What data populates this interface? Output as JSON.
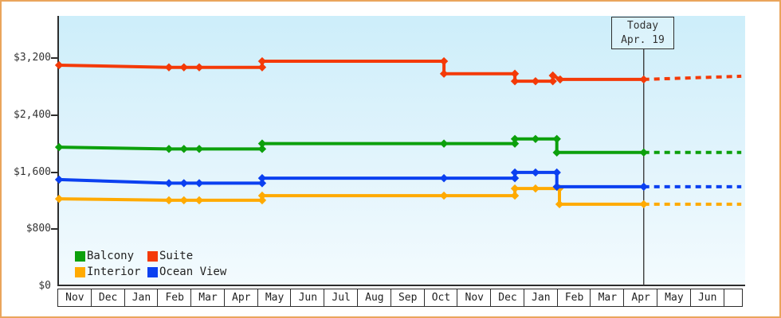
{
  "page": {
    "kind": "price-history-chart",
    "frame_color": "#eaa55c",
    "plot_bg_top": "#cdeefa",
    "plot_bg_bottom": "#f3fbfe",
    "axis_color": "#2d2d2d"
  },
  "today_box": {
    "line1": "Today",
    "line2": "Apr. 19"
  },
  "chart_data": {
    "type": "line",
    "title": "",
    "xlabel": "",
    "ylabel": "",
    "x_axis": {
      "unit": "month",
      "month_labels": [
        "Nov",
        "Dec",
        "Jan",
        "Feb",
        "Mar",
        "Apr",
        "May",
        "Jun",
        "Jul",
        "Aug",
        "Sep",
        "Oct",
        "Nov",
        "Dec",
        "Jan",
        "Feb",
        "Mar",
        "Apr",
        "May",
        "Jun"
      ],
      "months_shown": 20,
      "trailing_empty_cell": true
    },
    "y_axis": {
      "min": 0,
      "max": 3200,
      "tick_values": [
        3200,
        2400,
        1600,
        800,
        0
      ],
      "tick_labels": [
        "$3,200",
        "$2,400",
        "$1,600",
        "$800",
        "$0"
      ]
    },
    "today": {
      "month_position": 17.61,
      "date_label": "Apr. 19"
    },
    "projection_end_month": 20.54,
    "grid": false,
    "legend_position": "bottom-left-inside",
    "series": [
      {
        "name": "Interior",
        "color": "#ffaa00",
        "points": [
          [
            0.05,
            1225
          ],
          [
            3.35,
            1205
          ],
          [
            3.8,
            1205
          ],
          [
            4.26,
            1205
          ],
          [
            6.15,
            1205
          ],
          [
            6.15,
            1270
          ],
          [
            11.61,
            1270
          ],
          [
            13.74,
            1270
          ],
          [
            13.74,
            1370
          ],
          [
            14.36,
            1370
          ],
          [
            15.08,
            1370
          ],
          [
            15.08,
            1150
          ],
          [
            17.61,
            1150
          ]
        ],
        "projection": [
          [
            17.61,
            1150
          ],
          [
            20.54,
            1150
          ]
        ]
      },
      {
        "name": "Ocean View",
        "color": "#0b40f0",
        "points": [
          [
            0.05,
            1495
          ],
          [
            3.35,
            1445
          ],
          [
            3.8,
            1445
          ],
          [
            4.26,
            1445
          ],
          [
            6.15,
            1445
          ],
          [
            6.15,
            1515
          ],
          [
            11.61,
            1515
          ],
          [
            13.74,
            1515
          ],
          [
            13.74,
            1595
          ],
          [
            14.36,
            1595
          ],
          [
            15.0,
            1595
          ],
          [
            15.0,
            1395
          ],
          [
            17.61,
            1395
          ]
        ],
        "projection": [
          [
            17.61,
            1395
          ],
          [
            20.54,
            1395
          ]
        ]
      },
      {
        "name": "Balcony",
        "color": "#0ca00c",
        "points": [
          [
            0.05,
            1950
          ],
          [
            3.35,
            1925
          ],
          [
            3.8,
            1925
          ],
          [
            4.26,
            1925
          ],
          [
            6.15,
            1925
          ],
          [
            6.15,
            2000
          ],
          [
            11.61,
            2000
          ],
          [
            13.74,
            2000
          ],
          [
            13.74,
            2065
          ],
          [
            14.36,
            2065
          ],
          [
            15.0,
            2065
          ],
          [
            15.0,
            1875
          ],
          [
            17.61,
            1875
          ]
        ],
        "projection": [
          [
            17.61,
            1875
          ],
          [
            20.54,
            1875
          ]
        ]
      },
      {
        "name": "Suite",
        "color": "#f43a08",
        "points": [
          [
            0.05,
            3100
          ],
          [
            3.35,
            3070
          ],
          [
            3.8,
            3070
          ],
          [
            4.26,
            3070
          ],
          [
            6.15,
            3070
          ],
          [
            6.15,
            3155
          ],
          [
            11.61,
            3155
          ],
          [
            11.61,
            2980
          ],
          [
            13.74,
            2980
          ],
          [
            13.74,
            2875
          ],
          [
            14.36,
            2875
          ],
          [
            14.88,
            2875
          ],
          [
            14.88,
            2955
          ],
          [
            15.1,
            2900
          ],
          [
            17.61,
            2900
          ]
        ],
        "projection": [
          [
            17.61,
            2900
          ],
          [
            20.54,
            2945
          ]
        ]
      }
    ],
    "legend": [
      {
        "label": "Balcony",
        "series": "Balcony",
        "col": 0,
        "row": 0
      },
      {
        "label": "Suite",
        "series": "Suite",
        "col": 1,
        "row": 0
      },
      {
        "label": "Interior",
        "series": "Interior",
        "col": 0,
        "row": 1
      },
      {
        "label": "Ocean View",
        "series": "Ocean View",
        "col": 1,
        "row": 1
      }
    ]
  }
}
